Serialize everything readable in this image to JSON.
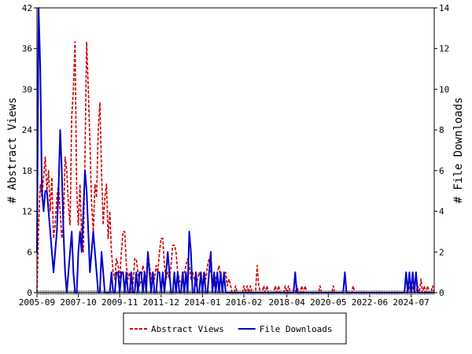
{
  "chart_data": {
    "type": "line",
    "y_label": "# Abstract Views",
    "y2_label": "# File Downloads",
    "categories": [
      "2005-09",
      null,
      null,
      null,
      null,
      null,
      null,
      null,
      null,
      null,
      null,
      null,
      null,
      null,
      null,
      null,
      null,
      null,
      null,
      null,
      null,
      null,
      null,
      null,
      null,
      "2007-10",
      null,
      null,
      null,
      null,
      null,
      null,
      null,
      null,
      null,
      null,
      null,
      null,
      null,
      null,
      null,
      null,
      null,
      null,
      null,
      null,
      null,
      null,
      null,
      null,
      "2009-11",
      null,
      null,
      null,
      null,
      null,
      null,
      null,
      null,
      null,
      null,
      null,
      null,
      null,
      null,
      null,
      null,
      null,
      null,
      null,
      null,
      null,
      null,
      null,
      null,
      "2011-12",
      null,
      null,
      null,
      null,
      null,
      null,
      null,
      null,
      null,
      null,
      null,
      null,
      null,
      null,
      null,
      null,
      null,
      null,
      null,
      null,
      null,
      null,
      null,
      null,
      "2014-01",
      null,
      null,
      null,
      null,
      null,
      null,
      null,
      null,
      null,
      null,
      null,
      null,
      null,
      null,
      null,
      null,
      null,
      null,
      null,
      null,
      null,
      null,
      null,
      null,
      "2016-02",
      null,
      null,
      null,
      null,
      null,
      null,
      null,
      null,
      null,
      null,
      null,
      null,
      null,
      null,
      null,
      null,
      null,
      null,
      null,
      null,
      null,
      null,
      null,
      null,
      null,
      "2018-04",
      null,
      null,
      null,
      null,
      null,
      null,
      null,
      null,
      null,
      null,
      null,
      null,
      null,
      null,
      null,
      null,
      null,
      null,
      null,
      null,
      null,
      null,
      null,
      null,
      "2020-05",
      null,
      null,
      null,
      null,
      null,
      null,
      null,
      null,
      null,
      null,
      null,
      null,
      null,
      null,
      null,
      null,
      null,
      null,
      null,
      null,
      null,
      null,
      null,
      null,
      "2022-06",
      null,
      null,
      null,
      null,
      null,
      null,
      null,
      null,
      null,
      null,
      null,
      null,
      null,
      null,
      null,
      null,
      null,
      null,
      null,
      null,
      null,
      null,
      null,
      null,
      "2024-07",
      null,
      null,
      null,
      null,
      null,
      null,
      null,
      null,
      null,
      null,
      null,
      null,
      null,
      null
    ],
    "series": [
      {
        "name": "Abstract Views",
        "color": "#cc0000",
        "dash": true,
        "values": [
          0,
          10,
          16,
          14,
          17,
          20,
          15,
          18,
          12,
          17,
          8,
          10,
          14,
          16,
          12,
          8,
          10,
          20,
          18,
          13,
          10,
          26,
          30,
          37,
          15,
          10,
          16,
          8,
          6,
          20,
          37,
          30,
          22,
          13,
          9,
          16,
          14,
          24,
          28,
          18,
          10,
          14,
          16,
          8,
          12,
          6,
          3,
          2,
          5,
          4,
          2,
          6,
          9,
          9,
          4,
          2,
          3,
          0,
          1,
          5,
          5,
          3,
          1,
          2,
          4,
          3,
          2,
          6,
          4,
          2,
          3,
          2,
          4,
          3,
          6,
          8,
          8,
          4,
          2,
          3,
          2,
          4,
          7,
          7,
          6,
          3,
          2,
          1,
          2,
          3,
          4,
          5,
          4,
          2,
          3,
          2,
          1,
          2,
          3,
          2,
          1,
          3,
          2,
          4,
          5,
          3,
          2,
          1,
          2,
          3,
          4,
          2,
          1,
          2,
          3,
          1,
          2,
          1,
          0,
          0,
          1,
          0,
          0,
          0,
          0,
          1,
          0,
          1,
          0,
          1,
          0,
          0,
          0,
          4,
          1,
          0,
          0,
          1,
          0,
          1,
          0,
          0,
          0,
          0,
          1,
          0,
          1,
          0,
          0,
          0,
          1,
          0,
          1,
          0,
          0,
          0,
          0,
          1,
          0,
          0,
          1,
          0,
          1,
          0,
          0,
          0,
          0,
          0,
          0,
          0,
          0,
          1,
          0,
          0,
          0,
          0,
          0,
          0,
          0,
          1,
          0,
          0,
          0,
          0,
          0,
          0,
          0,
          0,
          0,
          0,
          0,
          1,
          0,
          0,
          0,
          0,
          0,
          0,
          0,
          0,
          0,
          0,
          0,
          0,
          0,
          0,
          0,
          0,
          0,
          0,
          0,
          0,
          0,
          0,
          0,
          0,
          0,
          0,
          0,
          0,
          0,
          0,
          0,
          0,
          0,
          1,
          0,
          1,
          0,
          0,
          1,
          0,
          2,
          0,
          1,
          0,
          1,
          0,
          0,
          1,
          0
        ]
      },
      {
        "name": "File Downloads",
        "color": "#0000cc",
        "axis": "y2",
        "values": [
          2,
          14,
          11,
          5,
          4,
          5,
          5,
          4,
          3,
          2,
          1,
          2,
          3,
          5,
          8,
          6,
          3,
          1,
          0,
          1,
          2,
          3,
          1,
          0,
          0,
          2,
          3,
          2,
          4,
          6,
          5,
          3,
          1,
          2,
          3,
          2,
          1,
          0,
          0,
          2,
          1,
          0,
          0,
          0,
          0,
          1,
          0,
          0,
          1,
          1,
          0,
          1,
          1,
          0,
          1,
          0,
          0,
          1,
          0,
          0,
          1,
          0,
          1,
          1,
          0,
          1,
          0,
          2,
          1,
          0,
          1,
          0,
          0,
          1,
          1,
          0,
          1,
          0,
          1,
          2,
          1,
          0,
          0,
          1,
          0,
          1,
          0,
          0,
          1,
          0,
          1,
          0,
          3,
          2,
          0,
          0,
          1,
          0,
          0,
          1,
          0,
          1,
          0,
          0,
          1,
          2,
          0,
          1,
          0,
          1,
          0,
          1,
          0,
          1,
          0,
          0,
          0,
          0,
          0,
          0,
          0,
          0,
          0,
          0,
          0,
          0,
          0,
          0,
          0,
          0,
          0,
          0,
          0,
          0,
          0,
          0,
          0,
          0,
          0,
          0,
          0,
          0,
          0,
          0,
          0,
          0,
          0,
          0,
          0,
          0,
          0,
          0,
          0,
          0,
          0,
          0,
          1,
          0,
          0,
          0,
          0,
          0,
          0,
          0,
          0,
          0,
          0,
          0,
          0,
          0,
          0,
          0,
          0,
          0,
          0,
          0,
          0,
          0,
          0,
          0,
          0,
          0,
          0,
          0,
          0,
          0,
          1,
          0,
          0,
          0,
          0,
          0,
          0,
          0,
          0,
          0,
          0,
          0,
          0,
          0,
          0,
          0,
          0,
          0,
          0,
          0,
          0,
          0,
          0,
          0,
          0,
          0,
          0,
          0,
          0,
          0,
          0,
          0,
          0,
          0,
          0,
          0,
          0,
          1,
          0,
          1,
          0,
          1,
          0,
          1,
          0,
          0,
          0,
          0,
          0,
          0,
          0,
          0,
          0,
          0,
          0
        ]
      }
    ],
    "ylim": [
      0,
      42
    ],
    "yticks": [
      0,
      6,
      12,
      18,
      24,
      30,
      36,
      42
    ],
    "y2lim": [
      0,
      14
    ],
    "y2ticks": [
      0,
      2,
      4,
      6,
      8,
      10,
      12,
      14
    ],
    "legend": "bottom"
  }
}
